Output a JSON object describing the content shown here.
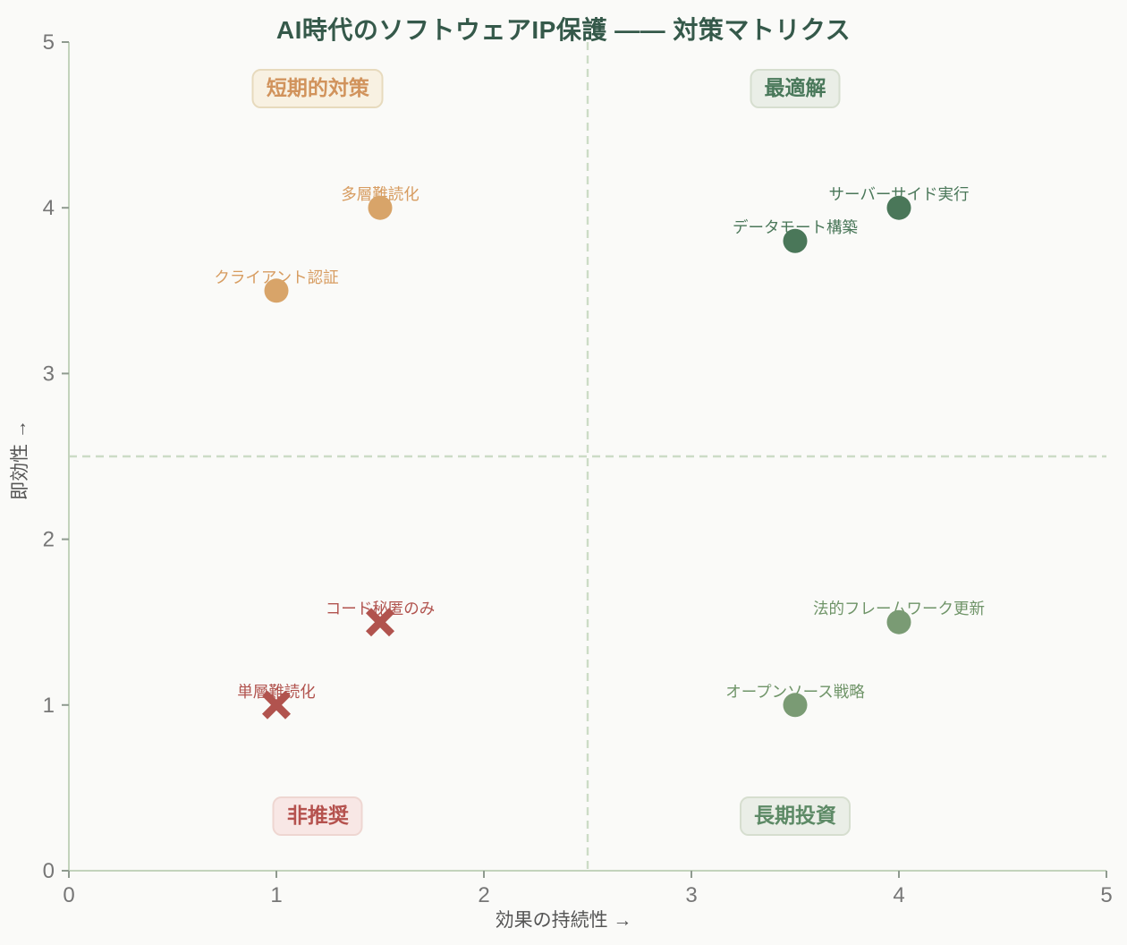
{
  "chart_data": {
    "type": "scatter",
    "title": "AI時代のソフトウェアIP保護 —— 対策マトリクス",
    "xlabel": "効果の持続性 →",
    "ylabel": "即効性 →",
    "xlim": [
      0,
      5
    ],
    "ylim": [
      0,
      5
    ],
    "xticks": [
      0,
      1,
      2,
      3,
      4,
      5
    ],
    "yticks": [
      0,
      1,
      2,
      3,
      4,
      5
    ],
    "grid": false,
    "legend": "none",
    "quadrant_lines": {
      "x": 2.5,
      "y": 2.5
    },
    "colors": {
      "background": "#fafaf8",
      "title": "#35594a",
      "axis": "#c3d3bc",
      "tick": "#8f9a8f",
      "tick_label": "#767676",
      "axis_label": "#555555",
      "quadrant_line": "#ccdcc6"
    },
    "quadrant_labels": [
      {
        "id": "short-term",
        "label": "短期的対策",
        "x": 1.2,
        "y": 4.72,
        "text_color": "#d1935c",
        "bg": "#f8f1e2",
        "border": "#e7dabd"
      },
      {
        "id": "optimal",
        "label": "最適解",
        "x": 3.5,
        "y": 4.72,
        "text_color": "#49785a",
        "bg": "#eaeee7",
        "border": "#d6decf"
      },
      {
        "id": "not-recommended",
        "label": "非推奨",
        "x": 1.2,
        "y": 0.33,
        "text_color": "#b5524e",
        "bg": "#f8e7e5",
        "border": "#eed6d1"
      },
      {
        "id": "long-term",
        "label": "長期投資",
        "x": 3.5,
        "y": 0.33,
        "text_color": "#5d8a66",
        "bg": "#eaeee7",
        "border": "#d6decf"
      }
    ],
    "series": [
      {
        "name": "短期的対策",
        "marker": "circle",
        "color": "#d8a469",
        "label_color": "#d79c60",
        "points": [
          {
            "id": "multi-layer-obfuscation",
            "label": "多層難読化",
            "x": 1.5,
            "y": 4.0
          },
          {
            "id": "client-auth",
            "label": "クライアント認証",
            "x": 1.0,
            "y": 3.5
          }
        ]
      },
      {
        "name": "最適解",
        "marker": "circle",
        "color": "#4a7759",
        "label_color": "#4a7759",
        "points": [
          {
            "id": "server-side-execution",
            "label": "サーバーサイド実行",
            "x": 4.0,
            "y": 4.0
          },
          {
            "id": "data-moat",
            "label": "データモート構築",
            "x": 3.5,
            "y": 3.8
          }
        ]
      },
      {
        "name": "非推奨",
        "marker": "x",
        "color": "#b1534e",
        "label_color": "#b1534e",
        "points": [
          {
            "id": "code-secrecy-only",
            "label": "コード秘匿のみ",
            "x": 1.5,
            "y": 1.5
          },
          {
            "id": "single-layer-obfuscation",
            "label": "単層難読化",
            "x": 1.0,
            "y": 1.0
          }
        ]
      },
      {
        "name": "長期投資",
        "marker": "circle",
        "color": "#7a9b74",
        "label_color": "#6f9468",
        "points": [
          {
            "id": "legal-framework-update",
            "label": "法的フレームワーク更新",
            "x": 4.0,
            "y": 1.5
          },
          {
            "id": "open-source-strategy",
            "label": "オープンソース戦略",
            "x": 3.5,
            "y": 1.0
          }
        ]
      }
    ]
  }
}
